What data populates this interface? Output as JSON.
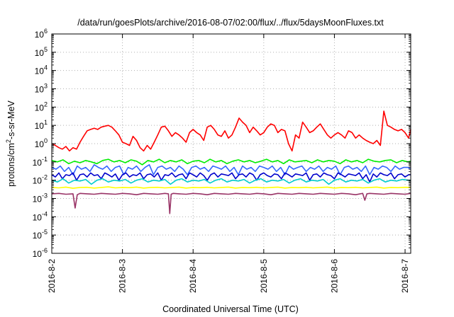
{
  "chart_data": {
    "type": "line",
    "title": "/data/run/goesPlots/archive/2016-08-07/02:00/flux/../flux/5daysMoonFluxes.txt",
    "xlabel": "Coordinated Universal Time (UTC)",
    "ylabel": "protons/cm²-s-sr-MeV",
    "ylabel_parts": {
      "before": "protons/cm",
      "sup": "2",
      "after": "-s-sr-MeV"
    },
    "yscale": "log",
    "ylim": [
      1e-06,
      1000000.0
    ],
    "xlim": [
      0,
      5.08
    ],
    "grid": true,
    "y_ticks": [
      {
        "value": -6,
        "base": "10",
        "exp": "-6"
      },
      {
        "value": -5,
        "base": "10",
        "exp": "-5"
      },
      {
        "value": -4,
        "base": "10",
        "exp": "-4"
      },
      {
        "value": -3,
        "base": "10",
        "exp": "-3"
      },
      {
        "value": -2,
        "base": "10",
        "exp": "-2"
      },
      {
        "value": -1,
        "base": "10",
        "exp": "-1"
      },
      {
        "value": 0,
        "base": "10",
        "exp": "0"
      },
      {
        "value": 1,
        "base": "10",
        "exp": "1"
      },
      {
        "value": 2,
        "base": "10",
        "exp": "2"
      },
      {
        "value": 3,
        "base": "10",
        "exp": "3"
      },
      {
        "value": 4,
        "base": "10",
        "exp": "4"
      },
      {
        "value": 5,
        "base": "10",
        "exp": "5"
      },
      {
        "value": 6,
        "base": "10",
        "exp": "6"
      }
    ],
    "x_ticks": [
      {
        "value": 0,
        "label": "2016-8-2"
      },
      {
        "value": 1,
        "label": "2016-8-3"
      },
      {
        "value": 2,
        "label": "2016-8-4"
      },
      {
        "value": 3,
        "label": "2016-8-5"
      },
      {
        "value": 4,
        "label": "2016-8-6"
      },
      {
        "value": 5,
        "label": "2016-8-7"
      }
    ],
    "series": [
      {
        "color": "#ff0000",
        "x": [
          0.0,
          0.05,
          0.1,
          0.15,
          0.2,
          0.25,
          0.3,
          0.35,
          0.4,
          0.45,
          0.5,
          0.55,
          0.6,
          0.65,
          0.7,
          0.75,
          0.8,
          0.85,
          0.9,
          0.95,
          1.0,
          1.05,
          1.1,
          1.15,
          1.2,
          1.25,
          1.3,
          1.35,
          1.4,
          1.45,
          1.5,
          1.55,
          1.6,
          1.65,
          1.7,
          1.75,
          1.8,
          1.85,
          1.9,
          1.95,
          2.0,
          2.05,
          2.1,
          2.15,
          2.2,
          2.25,
          2.3,
          2.35,
          2.4,
          2.45,
          2.5,
          2.55,
          2.6,
          2.65,
          2.7,
          2.75,
          2.8,
          2.85,
          2.9,
          2.95,
          3.0,
          3.05,
          3.1,
          3.15,
          3.2,
          3.25,
          3.3,
          3.35,
          3.4,
          3.45,
          3.5,
          3.55,
          3.6,
          3.65,
          3.7,
          3.75,
          3.8,
          3.85,
          3.9,
          3.95,
          4.0,
          4.05,
          4.1,
          4.15,
          4.2,
          4.25,
          4.3,
          4.35,
          4.4,
          4.45,
          4.5,
          4.55,
          4.6,
          4.65,
          4.7,
          4.75,
          4.8,
          4.85,
          4.9,
          4.95,
          5.0,
          5.05,
          5.08
        ],
        "y": [
          1.0,
          0.8,
          0.6,
          0.5,
          0.7,
          0.4,
          0.6,
          0.5,
          1.2,
          2.5,
          5,
          6,
          7,
          6,
          8,
          9,
          10,
          8,
          5,
          3,
          1.2,
          1.0,
          0.8,
          2.5,
          1.5,
          0.6,
          0.4,
          0.8,
          0.5,
          1.2,
          3,
          8,
          9,
          5,
          2.5,
          4,
          3,
          2,
          1.2,
          4,
          6,
          4,
          3,
          1.5,
          8,
          10,
          6,
          3,
          2.5,
          5,
          2,
          3,
          8,
          25,
          15,
          10,
          4,
          8,
          5,
          3,
          4,
          8,
          12,
          10,
          4,
          6,
          5,
          1,
          0.4,
          3,
          2,
          15,
          8,
          4,
          5,
          8,
          12,
          6,
          3,
          2,
          3,
          4,
          3,
          2,
          5,
          4,
          2,
          3,
          2,
          1.5,
          1.2,
          1,
          1.5,
          0.8,
          60,
          10,
          8,
          6,
          5,
          6,
          4,
          2,
          6
        ]
      },
      {
        "color": "#00ee00",
        "x": [
          0.0,
          0.08,
          0.16,
          0.24,
          0.32,
          0.4,
          0.48,
          0.56,
          0.64,
          0.72,
          0.8,
          0.88,
          0.96,
          1.04,
          1.12,
          1.2,
          1.28,
          1.36,
          1.44,
          1.52,
          1.6,
          1.68,
          1.76,
          1.84,
          1.92,
          2.0,
          2.08,
          2.16,
          2.24,
          2.32,
          2.4,
          2.48,
          2.56,
          2.64,
          2.72,
          2.8,
          2.88,
          2.96,
          3.04,
          3.12,
          3.2,
          3.28,
          3.36,
          3.44,
          3.52,
          3.6,
          3.68,
          3.76,
          3.84,
          3.92,
          4.0,
          4.08,
          4.16,
          4.24,
          4.32,
          4.4,
          4.48,
          4.56,
          4.64,
          4.72,
          4.8,
          4.88,
          4.96,
          5.04,
          5.08
        ],
        "y": [
          0.12,
          0.1,
          0.13,
          0.08,
          0.11,
          0.09,
          0.12,
          0.1,
          0.08,
          0.12,
          0.14,
          0.1,
          0.12,
          0.09,
          0.13,
          0.11,
          0.07,
          0.12,
          0.1,
          0.14,
          0.09,
          0.12,
          0.1,
          0.13,
          0.08,
          0.11,
          0.12,
          0.09,
          0.14,
          0.1,
          0.12,
          0.08,
          0.11,
          0.13,
          0.1,
          0.12,
          0.09,
          0.11,
          0.14,
          0.1,
          0.12,
          0.08,
          0.13,
          0.1,
          0.11,
          0.12,
          0.09,
          0.13,
          0.1,
          0.12,
          0.11,
          0.08,
          0.13,
          0.1,
          0.12,
          0.09,
          0.14,
          0.11,
          0.1,
          0.12,
          0.13,
          0.09,
          0.12,
          0.1,
          0.11
        ]
      },
      {
        "color": "#3366ff",
        "x": [
          0.0,
          0.06,
          0.12,
          0.18,
          0.24,
          0.3,
          0.36,
          0.42,
          0.48,
          0.54,
          0.6,
          0.66,
          0.72,
          0.78,
          0.84,
          0.9,
          0.96,
          1.02,
          1.08,
          1.14,
          1.2,
          1.26,
          1.32,
          1.38,
          1.44,
          1.5,
          1.56,
          1.62,
          1.68,
          1.74,
          1.8,
          1.86,
          1.92,
          1.98,
          2.04,
          2.1,
          2.16,
          2.22,
          2.28,
          2.34,
          2.4,
          2.46,
          2.52,
          2.58,
          2.64,
          2.7,
          2.76,
          2.82,
          2.88,
          2.94,
          3.0,
          3.06,
          3.12,
          3.18,
          3.24,
          3.3,
          3.36,
          3.42,
          3.48,
          3.54,
          3.6,
          3.66,
          3.72,
          3.78,
          3.84,
          3.9,
          3.96,
          4.02,
          4.08,
          4.14,
          4.2,
          4.26,
          4.32,
          4.38,
          4.44,
          4.5,
          4.56,
          4.62,
          4.68,
          4.74,
          4.8,
          4.86,
          4.92,
          4.98,
          5.04,
          5.08
        ],
        "y": [
          0.05,
          0.04,
          0.06,
          0.03,
          0.05,
          0.02,
          0.06,
          0.04,
          0.05,
          0.03,
          0.07,
          0.05,
          0.04,
          0.06,
          0.03,
          0.05,
          0.06,
          0.02,
          0.05,
          0.04,
          0.06,
          0.03,
          0.05,
          0.07,
          0.02,
          0.05,
          0.06,
          0.04,
          0.05,
          0.03,
          0.06,
          0.04,
          0.02,
          0.05,
          0.06,
          0.04,
          0.05,
          0.03,
          0.06,
          0.05,
          0.04,
          0.06,
          0.03,
          0.05,
          0.02,
          0.06,
          0.04,
          0.05,
          0.03,
          0.06,
          0.05,
          0.04,
          0.06,
          0.03,
          0.05,
          0.02,
          0.06,
          0.04,
          0.05,
          0.06,
          0.03,
          0.05,
          0.04,
          0.06,
          0.03,
          0.05,
          0.04,
          0.06,
          0.02,
          0.05,
          0.06,
          0.04,
          0.05,
          0.03,
          0.06,
          0.02,
          0.05,
          0.04,
          0.06,
          0.05,
          0.03,
          0.06,
          0.04,
          0.05,
          0.05,
          0.04
        ]
      },
      {
        "color": "#0000cc",
        "x": [
          0.0,
          0.05,
          0.1,
          0.15,
          0.2,
          0.25,
          0.3,
          0.35,
          0.4,
          0.45,
          0.5,
          0.55,
          0.6,
          0.65,
          0.7,
          0.75,
          0.8,
          0.85,
          0.9,
          0.95,
          1.0,
          1.05,
          1.1,
          1.15,
          1.2,
          1.25,
          1.3,
          1.35,
          1.4,
          1.45,
          1.5,
          1.55,
          1.6,
          1.65,
          1.7,
          1.75,
          1.8,
          1.85,
          1.9,
          1.95,
          2.0,
          2.05,
          2.1,
          2.15,
          2.2,
          2.25,
          2.3,
          2.35,
          2.4,
          2.45,
          2.5,
          2.55,
          2.6,
          2.65,
          2.7,
          2.75,
          2.8,
          2.85,
          2.9,
          2.95,
          3.0,
          3.05,
          3.1,
          3.15,
          3.2,
          3.25,
          3.3,
          3.35,
          3.4,
          3.45,
          3.5,
          3.55,
          3.6,
          3.65,
          3.7,
          3.75,
          3.8,
          3.85,
          3.9,
          3.95,
          4.0,
          4.05,
          4.1,
          4.15,
          4.2,
          4.25,
          4.3,
          4.35,
          4.4,
          4.45,
          4.5,
          4.55,
          4.6,
          4.65,
          4.7,
          4.75,
          4.8,
          4.85,
          4.9,
          4.95,
          5.0,
          5.05,
          5.08
        ],
        "y": [
          0.02,
          0.015,
          0.025,
          0.012,
          0.02,
          0.018,
          0.025,
          0.01,
          0.02,
          0.022,
          0.015,
          0.025,
          0.018,
          0.02,
          0.012,
          0.025,
          0.02,
          0.015,
          0.022,
          0.01,
          0.02,
          0.025,
          0.015,
          0.02,
          0.018,
          0.025,
          0.012,
          0.02,
          0.022,
          0.015,
          0.025,
          0.01,
          0.02,
          0.018,
          0.025,
          0.015,
          0.02,
          0.022,
          0.012,
          0.025,
          0.02,
          0.015,
          0.025,
          0.018,
          0.01,
          0.02,
          0.025,
          0.015,
          0.022,
          0.02,
          0.018,
          0.025,
          0.012,
          0.02,
          0.022,
          0.015,
          0.025,
          0.02,
          0.01,
          0.02,
          0.025,
          0.018,
          0.015,
          0.022,
          0.02,
          0.012,
          0.025,
          0.02,
          0.015,
          0.022,
          0.02,
          0.018,
          0.025,
          0.01,
          0.02,
          0.022,
          0.015,
          0.025,
          0.02,
          0.018,
          0.012,
          0.025,
          0.02,
          0.015,
          0.022,
          0.02,
          0.018,
          0.025,
          0.012,
          0.02,
          0.008,
          0.022,
          0.015,
          0.025,
          0.02,
          0.018,
          0.025,
          0.012,
          0.02,
          0.022,
          0.015,
          0.02,
          0.02
        ]
      },
      {
        "color": "#00cccc",
        "x": [
          0.0,
          0.08,
          0.16,
          0.24,
          0.32,
          0.4,
          0.48,
          0.56,
          0.64,
          0.72,
          0.8,
          0.88,
          0.96,
          1.04,
          1.12,
          1.2,
          1.28,
          1.36,
          1.44,
          1.52,
          1.6,
          1.68,
          1.76,
          1.84,
          1.92,
          2.0,
          2.08,
          2.16,
          2.24,
          2.32,
          2.4,
          2.48,
          2.56,
          2.64,
          2.72,
          2.8,
          2.88,
          2.96,
          3.04,
          3.12,
          3.2,
          3.28,
          3.36,
          3.44,
          3.52,
          3.6,
          3.68,
          3.76,
          3.84,
          3.92,
          4.0,
          4.08,
          4.16,
          4.24,
          4.32,
          4.4,
          4.48,
          4.56,
          4.64,
          4.72,
          4.8,
          4.88,
          4.96,
          5.04,
          5.08
        ],
        "y": [
          0.01,
          0.008,
          0.012,
          0.007,
          0.01,
          0.009,
          0.011,
          0.006,
          0.01,
          0.012,
          0.008,
          0.01,
          0.009,
          0.011,
          0.007,
          0.01,
          0.012,
          0.008,
          0.01,
          0.009,
          0.011,
          0.006,
          0.01,
          0.012,
          0.008,
          0.01,
          0.009,
          0.011,
          0.007,
          0.01,
          0.012,
          0.008,
          0.01,
          0.009,
          0.011,
          0.007,
          0.01,
          0.012,
          0.008,
          0.01,
          0.009,
          0.011,
          0.007,
          0.01,
          0.012,
          0.008,
          0.01,
          0.009,
          0.011,
          0.006,
          0.01,
          0.012,
          0.008,
          0.01,
          0.009,
          0.011,
          0.007,
          0.01,
          0.012,
          0.008,
          0.01,
          0.009,
          0.011,
          0.01,
          0.01
        ]
      },
      {
        "color": "#ffff00",
        "x": [
          0.0,
          0.1,
          0.2,
          0.3,
          0.4,
          0.5,
          0.6,
          0.7,
          0.8,
          0.9,
          1.0,
          1.1,
          1.2,
          1.3,
          1.4,
          1.5,
          1.6,
          1.7,
          1.8,
          1.9,
          2.0,
          2.1,
          2.2,
          2.3,
          2.4,
          2.5,
          2.6,
          2.7,
          2.8,
          2.9,
          3.0,
          3.1,
          3.2,
          3.3,
          3.4,
          3.5,
          3.6,
          3.7,
          3.8,
          3.9,
          4.0,
          4.1,
          4.2,
          4.3,
          4.4,
          4.5,
          4.6,
          4.7,
          4.8,
          4.9,
          5.0,
          5.08
        ],
        "y": [
          0.004,
          0.0038,
          0.0042,
          0.0036,
          0.004,
          0.0041,
          0.0037,
          0.004,
          0.0043,
          0.0038,
          0.004,
          0.0039,
          0.0042,
          0.0037,
          0.004,
          0.0041,
          0.0038,
          0.004,
          0.0042,
          0.0037,
          0.004,
          0.0039,
          0.0041,
          0.0038,
          0.004,
          0.0042,
          0.0037,
          0.004,
          0.0039,
          0.0041,
          0.0038,
          0.004,
          0.0042,
          0.0037,
          0.004,
          0.0039,
          0.0041,
          0.0038,
          0.004,
          0.0042,
          0.0037,
          0.004,
          0.0039,
          0.0041,
          0.0038,
          0.004,
          0.0042,
          0.0037,
          0.004,
          0.0039,
          0.0041,
          0.004
        ]
      },
      {
        "color": "#993366",
        "x": [
          0.0,
          0.1,
          0.2,
          0.3,
          0.33,
          0.36,
          0.4,
          0.5,
          0.6,
          0.7,
          0.8,
          0.9,
          1.0,
          1.1,
          1.2,
          1.3,
          1.4,
          1.5,
          1.6,
          1.65,
          1.67,
          1.69,
          1.72,
          1.8,
          1.9,
          2.0,
          2.1,
          2.2,
          2.3,
          2.4,
          2.5,
          2.6,
          2.7,
          2.8,
          2.9,
          3.0,
          3.1,
          3.2,
          3.3,
          3.4,
          3.5,
          3.6,
          3.7,
          3.8,
          3.9,
          4.0,
          4.1,
          4.2,
          4.3,
          4.4,
          4.43,
          4.46,
          4.5,
          4.6,
          4.7,
          4.8,
          4.9,
          5.0,
          5.08
        ],
        "y": [
          0.0018,
          0.0019,
          0.0017,
          0.0018,
          0.0003,
          0.0016,
          0.0019,
          0.0018,
          0.0017,
          0.0019,
          0.0018,
          0.0017,
          0.0019,
          0.0018,
          0.0016,
          0.0019,
          0.0018,
          0.0017,
          0.0019,
          0.0018,
          0.00015,
          0.0017,
          0.0019,
          0.0018,
          0.0017,
          0.0019,
          0.0018,
          0.0016,
          0.0019,
          0.0018,
          0.0017,
          0.0019,
          0.0018,
          0.0017,
          0.0019,
          0.0018,
          0.0016,
          0.0019,
          0.0018,
          0.0017,
          0.0019,
          0.0018,
          0.0017,
          0.0019,
          0.0018,
          0.0017,
          0.0019,
          0.0018,
          0.0016,
          0.0019,
          0.0008,
          0.0018,
          0.0019,
          0.0018,
          0.0017,
          0.0019,
          0.0018,
          0.0017,
          0.0019
        ]
      }
    ]
  }
}
